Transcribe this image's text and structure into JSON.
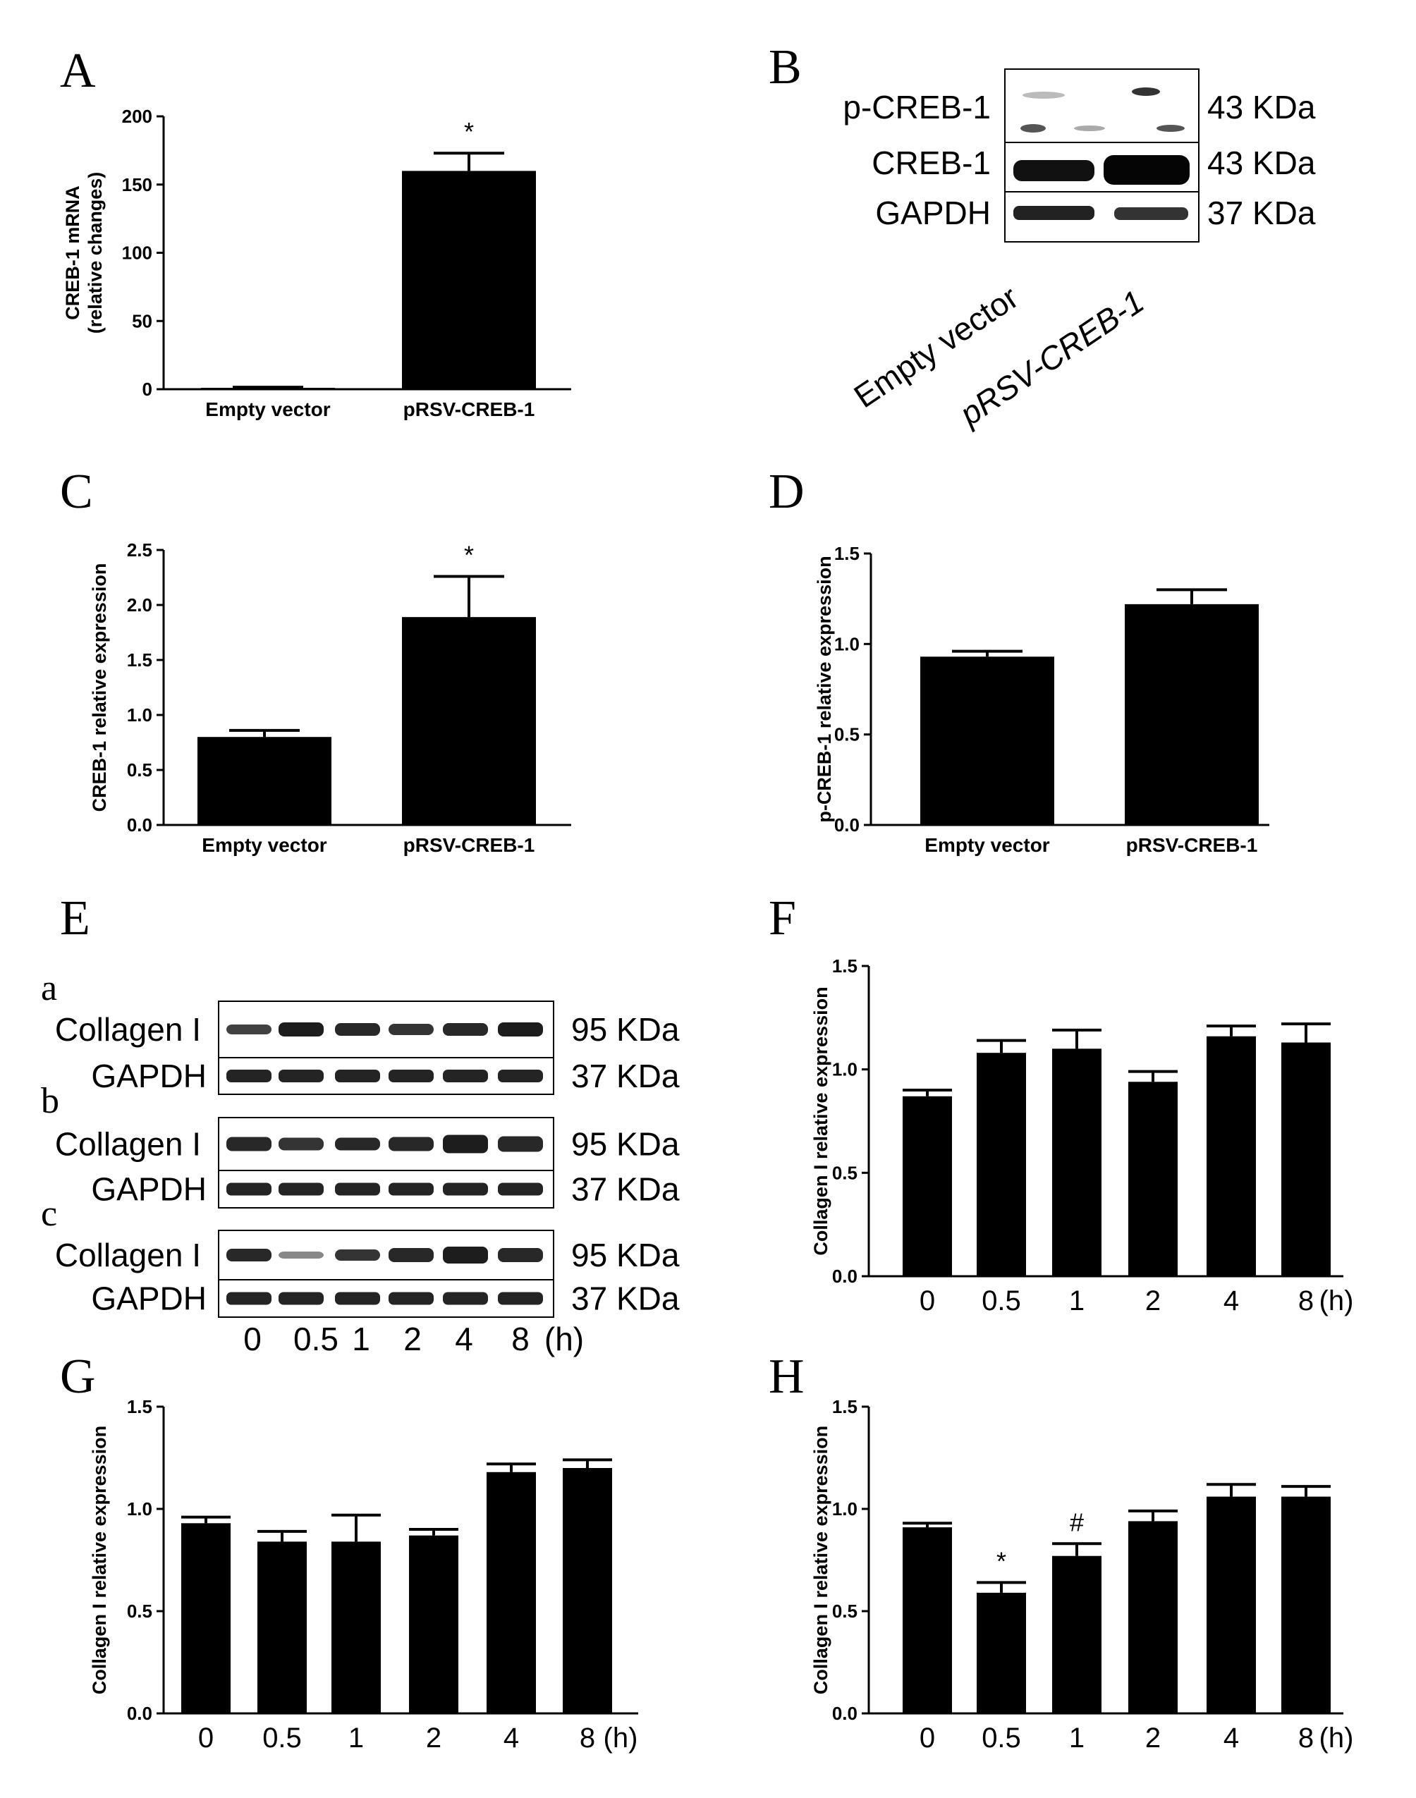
{
  "panels": [
    {
      "id": "A",
      "label": "A"
    },
    {
      "id": "B",
      "label": "B"
    },
    {
      "id": "C",
      "label": "C"
    },
    {
      "id": "D",
      "label": "D"
    },
    {
      "id": "E",
      "label": "E"
    },
    {
      "id": "F",
      "label": "F"
    },
    {
      "id": "G",
      "label": "G"
    },
    {
      "id": "H",
      "label": "H"
    }
  ],
  "chart_data": [
    {
      "panel": "A",
      "type": "bar",
      "categories": [
        "Empty vector",
        "pRSV-CREB-1"
      ],
      "values": [
        1,
        160
      ],
      "errors": [
        0.5,
        13
      ],
      "ylabel_line1": "CREB-1 mRNA",
      "ylabel_line2": "(relative changes)",
      "ylim": [
        0,
        200
      ],
      "yticks": [
        "0",
        "50",
        "100",
        "150",
        "200"
      ],
      "marks": [
        "",
        "*"
      ],
      "unit": ""
    },
    {
      "panel": "C",
      "type": "bar",
      "categories": [
        "Empty vector",
        "pRSV-CREB-1"
      ],
      "values": [
        0.8,
        1.89
      ],
      "errors": [
        0.06,
        0.37
      ],
      "ylabel_line1": "CREB-1 relative expression",
      "ylabel_line2": "",
      "ylim": [
        0,
        2.5
      ],
      "yticks": [
        "0.0",
        "0.5",
        "1.0",
        "1.5",
        "2.0",
        "2.5"
      ],
      "marks": [
        "",
        "*"
      ],
      "unit": ""
    },
    {
      "panel": "D",
      "type": "bar",
      "categories": [
        "Empty vector",
        "pRSV-CREB-1"
      ],
      "values": [
        0.93,
        1.22
      ],
      "errors": [
        0.03,
        0.08
      ],
      "ylabel_line1": "p-CREB-1 relative expression",
      "ylabel_line2": "",
      "ylim": [
        0,
        1.5
      ],
      "yticks": [
        "0.0",
        "0.5",
        "1.0",
        "1.5"
      ],
      "marks": [
        "",
        ""
      ],
      "unit": ""
    },
    {
      "panel": "F",
      "type": "bar",
      "categories": [
        "0",
        "0.5",
        "1",
        "2",
        "4",
        "8"
      ],
      "values": [
        0.87,
        1.08,
        1.1,
        0.94,
        1.16,
        1.13
      ],
      "errors": [
        0.03,
        0.06,
        0.09,
        0.05,
        0.05,
        0.09
      ],
      "ylabel_line1": "Collagen I relative expression",
      "ylabel_line2": "",
      "ylim": [
        0,
        1.5
      ],
      "yticks": [
        "0.0",
        "0.5",
        "1.0",
        "1.5"
      ],
      "marks": [
        "",
        "",
        "",
        "",
        "",
        ""
      ],
      "unit": "(h)"
    },
    {
      "panel": "G",
      "type": "bar",
      "categories": [
        "0",
        "0.5",
        "1",
        "2",
        "4",
        "8"
      ],
      "values": [
        0.93,
        0.84,
        0.84,
        0.87,
        1.18,
        1.2
      ],
      "errors": [
        0.03,
        0.05,
        0.13,
        0.03,
        0.04,
        0.04
      ],
      "ylabel_line1": "Collagen I relative expression",
      "ylabel_line2": "",
      "ylim": [
        0,
        1.5
      ],
      "yticks": [
        "0.0",
        "0.5",
        "1.0",
        "1.5"
      ],
      "marks": [
        "",
        "",
        "",
        "",
        "",
        ""
      ],
      "unit": "(h)"
    },
    {
      "panel": "H",
      "type": "bar",
      "categories": [
        "0",
        "0.5",
        "1",
        "2",
        "4",
        "8"
      ],
      "values": [
        0.91,
        0.59,
        0.77,
        0.94,
        1.06,
        1.06
      ],
      "errors": [
        0.02,
        0.05,
        0.06,
        0.05,
        0.06,
        0.05
      ],
      "ylabel_line1": "Collagen I relative expression",
      "ylabel_line2": "",
      "ylim": [
        0,
        1.5
      ],
      "yticks": [
        "0.0",
        "0.5",
        "1.0",
        "1.5"
      ],
      "marks": [
        "",
        "*",
        "#",
        "",
        "",
        ""
      ],
      "unit": "(h)"
    }
  ],
  "blot_B": {
    "rows": [
      {
        "label": "p-CREB-1",
        "size": "43 KDa"
      },
      {
        "label": "CREB-1",
        "size": "43 KDa"
      },
      {
        "label": "GAPDH",
        "size": "37 KDa"
      }
    ],
    "lanes": [
      "Empty vector",
      "pRSV-CREB-1"
    ]
  },
  "blot_E": {
    "groups": [
      {
        "sublabel": "a",
        "rows": [
          {
            "label": "Collagen I",
            "size": "95 KDa"
          },
          {
            "label": "GAPDH",
            "size": "37 KDa"
          }
        ]
      },
      {
        "sublabel": "b",
        "rows": [
          {
            "label": "Collagen I",
            "size": "95 KDa"
          },
          {
            "label": "GAPDH",
            "size": "37 KDa"
          }
        ]
      },
      {
        "sublabel": "c",
        "rows": [
          {
            "label": "Collagen I",
            "size": "95 KDa"
          },
          {
            "label": "GAPDH",
            "size": "37 KDa"
          }
        ]
      }
    ],
    "lanes": [
      "0",
      "0.5",
      "1",
      "2",
      "4",
      "8"
    ],
    "unit": "(h)"
  }
}
